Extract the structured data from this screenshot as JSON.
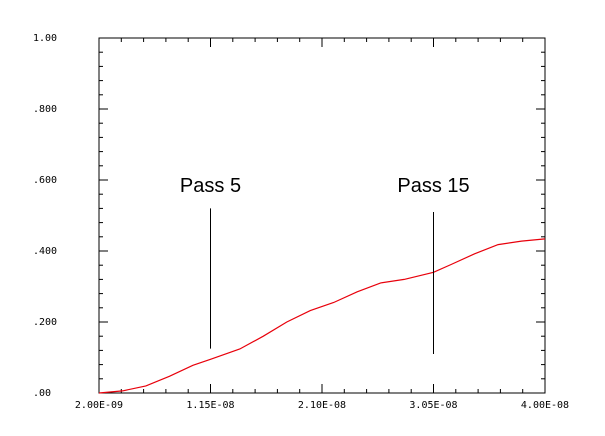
{
  "chart_data": {
    "type": "line",
    "title": "",
    "xlabel": "",
    "ylabel": "",
    "xlim": [
      2e-09,
      4e-08
    ],
    "ylim": [
      0,
      1
    ],
    "grid": false,
    "x_ticks": [
      {
        "value": 2e-09,
        "label": "2.00E-09"
      },
      {
        "value": 1.15e-08,
        "label": "1.15E-08"
      },
      {
        "value": 2.1e-08,
        "label": "2.10E-08"
      },
      {
        "value": 3.05e-08,
        "label": "3.05E-08"
      },
      {
        "value": 4e-08,
        "label": "4.00E-08"
      }
    ],
    "y_ticks": [
      {
        "value": 0,
        "label": ".00"
      },
      {
        "value": 0.2,
        "label": ".200"
      },
      {
        "value": 0.4,
        "label": ".400"
      },
      {
        "value": 0.6,
        "label": ".600"
      },
      {
        "value": 0.8,
        "label": ".800"
      },
      {
        "value": 1.0,
        "label": "1.00"
      }
    ],
    "series": [
      {
        "color": "#e8000b",
        "x": [
          2e-09,
          4e-09,
          6e-09,
          8e-09,
          1e-08,
          1.15e-08,
          1.4e-08,
          1.6e-08,
          1.8e-08,
          2e-08,
          2.2e-08,
          2.4e-08,
          2.6e-08,
          2.8e-08,
          3.05e-08,
          3.2e-08,
          3.4e-08,
          3.6e-08,
          3.8e-08,
          4e-08
        ],
        "y": [
          0.0,
          0.006,
          0.02,
          0.047,
          0.078,
          0.095,
          0.124,
          0.16,
          0.2,
          0.232,
          0.255,
          0.285,
          0.31,
          0.32,
          0.34,
          0.362,
          0.392,
          0.418,
          0.428,
          0.434
        ]
      }
    ],
    "annotations": [
      {
        "label": "Pass 5",
        "x": 1.15e-08,
        "y_from": 0.125,
        "y_to": 0.52
      },
      {
        "label": "Pass 15",
        "x": 3.05e-08,
        "y_from": 0.11,
        "y_to": 0.51
      }
    ]
  }
}
